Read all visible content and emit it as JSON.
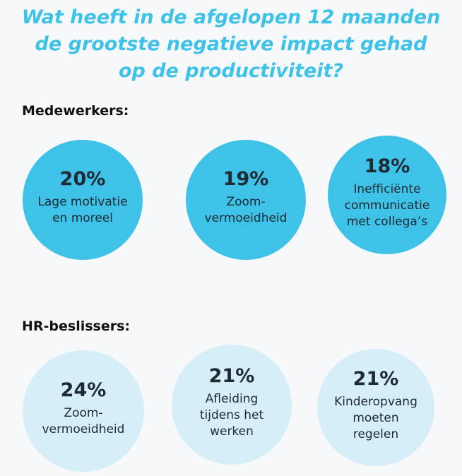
{
  "title": {
    "lines": [
      "Wat heeft in de afgelopen 12 maanden",
      "de grootste negatieve impact gehad",
      "op de productiviteit?"
    ]
  },
  "sections": [
    {
      "label": "Medewerkers:",
      "color": "#3ec2e8",
      "items": [
        {
          "percent": "20%",
          "lines": [
            "Lage motivatie",
            "en moreel"
          ]
        },
        {
          "percent": "19%",
          "lines": [
            "Zoom-",
            "vermoeidheid"
          ]
        },
        {
          "percent": "18%",
          "lines": [
            "Inefficiënte",
            "communicatie",
            "met collega’s"
          ]
        }
      ]
    },
    {
      "label": "HR-beslissers:",
      "color": "#d5eef8",
      "items": [
        {
          "percent": "24%",
          "lines": [
            "Zoom-",
            "vermoeidheid"
          ]
        },
        {
          "percent": "21%",
          "lines": [
            "Afleiding",
            "tijdens het",
            "werken"
          ]
        },
        {
          "percent": "21%",
          "lines": [
            "Kinderopvang",
            "moeten",
            "regelen"
          ]
        }
      ]
    }
  ]
}
